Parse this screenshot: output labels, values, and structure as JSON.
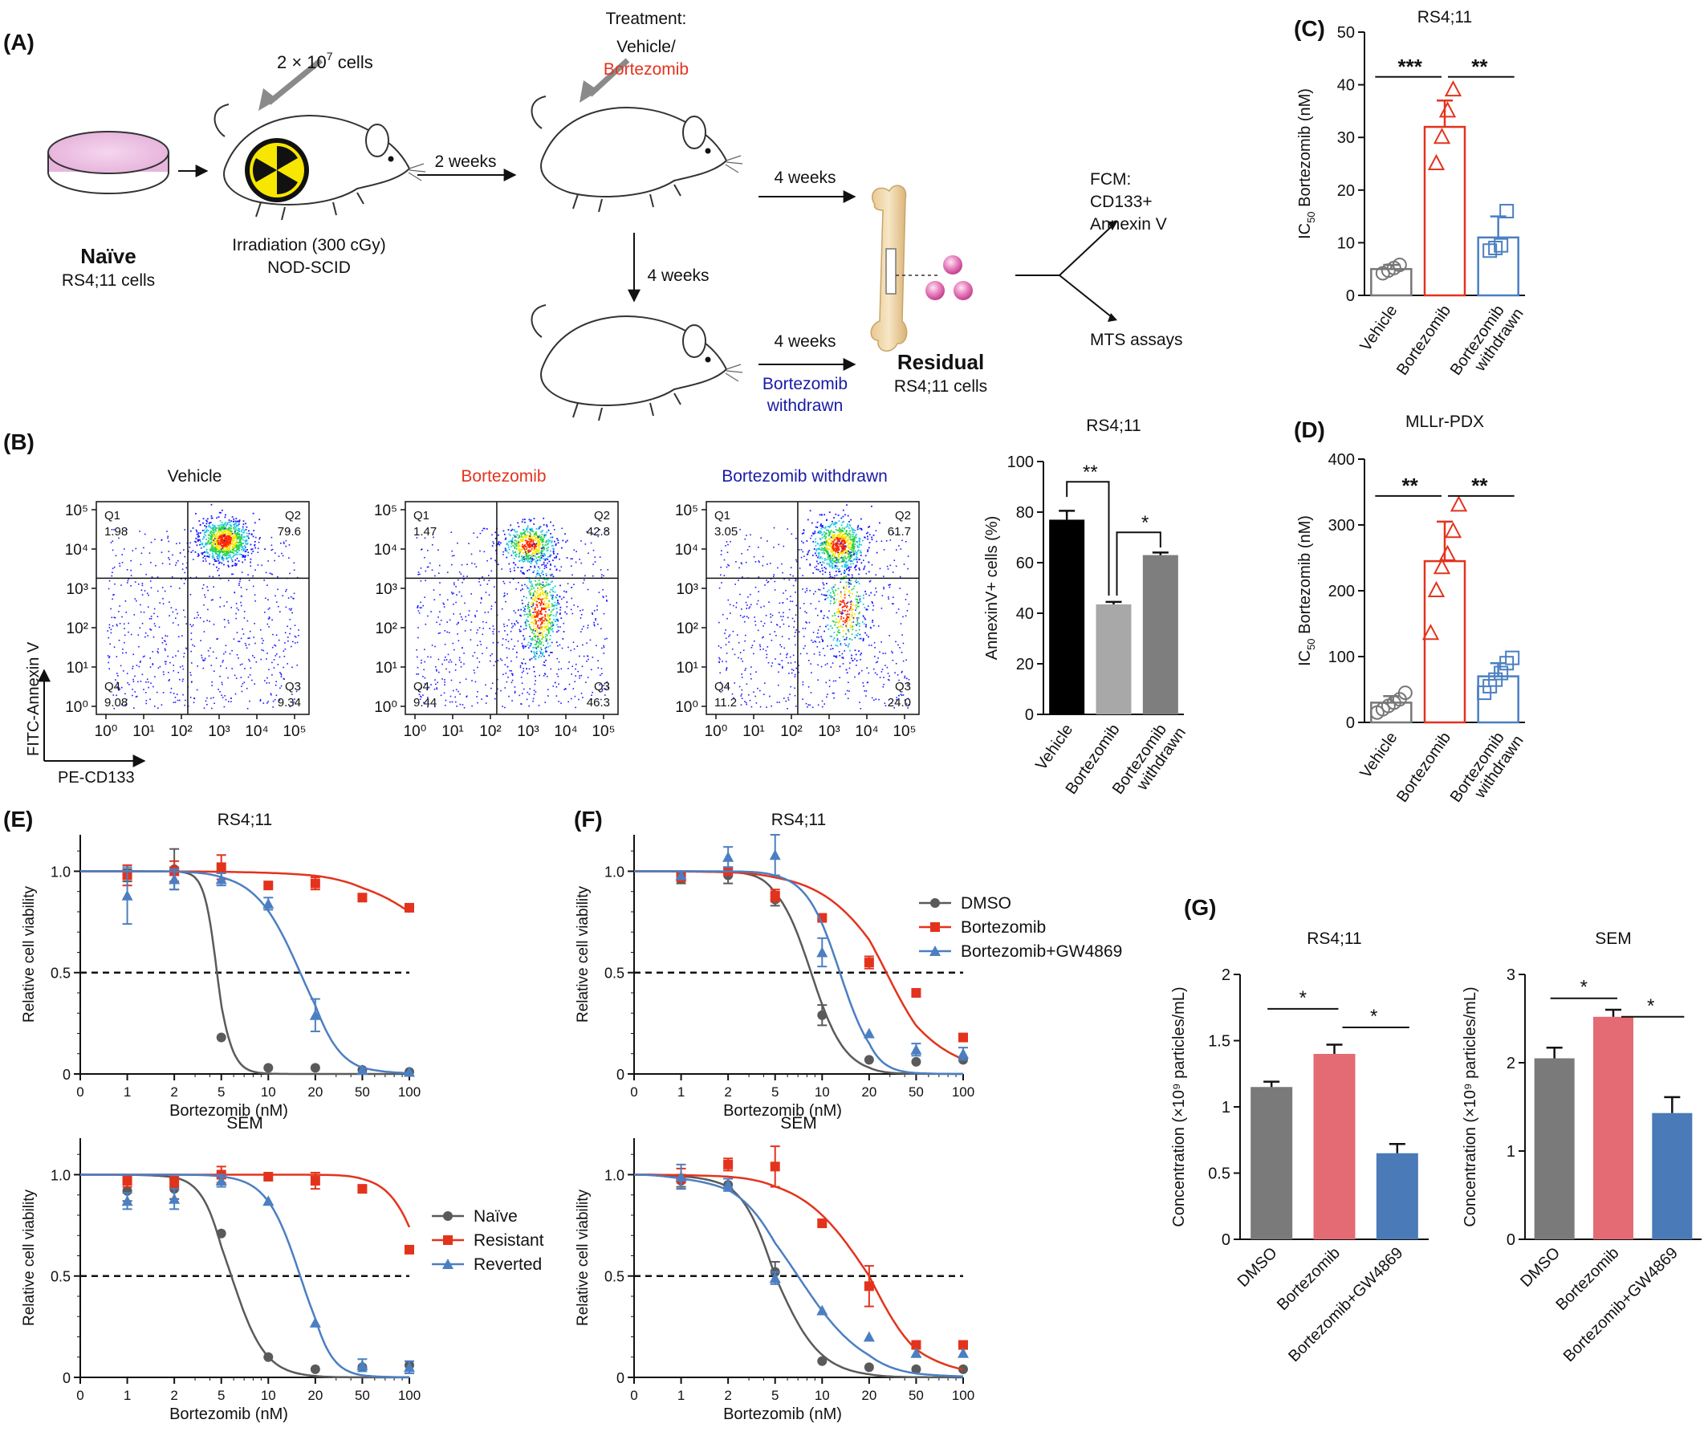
{
  "colors": {
    "black": "#111111",
    "gray": "#666666",
    "red": "#e3331d",
    "blue": "#4b7fc1",
    "navy": "#1a1aa8",
    "bar_black": "#000000",
    "bar_lightgray": "#a8a8a8",
    "bar_gray": "#7e7e7e",
    "g_gray": "#7a7a7a",
    "g_pink": "#e46a74",
    "g_blue": "#4a7ab7"
  },
  "panelA": {
    "label": "(A)",
    "cells_label": "2 × 10",
    "cells_exp": "7",
    "cells_suffix": " cells",
    "naive_bold": "Naïve",
    "naive_sub": "RS4;11 cells",
    "irradiation": "Irradiation (300 cGy)",
    "nod": "NOD-SCID",
    "two_weeks": "2 weeks",
    "treatment_title": "Treatment:",
    "treatment_vehicle": "Vehicle/",
    "treatment_bort": "Bortezomib",
    "four_weeks_top": "4 weeks",
    "four_weeks_down": "4 weeks",
    "four_weeks_bottom": "4 weeks",
    "withdrawn_1": "Bortezomib",
    "withdrawn_2": "withdrawn",
    "residual_bold": "Residual",
    "residual_sub": "RS4;11 cells",
    "fcm_1": "FCM:",
    "fcm_2": "CD133+",
    "fcm_3": "Annexin V",
    "mts": "MTS assays"
  },
  "panelB": {
    "label": "(B)",
    "plots": [
      {
        "title": "Vehicle",
        "q1": "1.98",
        "q2": "79.6",
        "q3": "9.34",
        "q4": "9.08"
      },
      {
        "title": "Bortezomib",
        "q1": "1.47",
        "q2": "42.8",
        "q3": "46.3",
        "q4": "9.44"
      },
      {
        "title": "Bortezomib withdrawn",
        "q1": "3.05",
        "q2": "61.7",
        "q3": "24.0",
        "q4": "11.2"
      }
    ],
    "quadrants": [
      "Q1",
      "Q2",
      "Q3",
      "Q4"
    ],
    "y_axis": "FITC-Annexin V",
    "x_axis": "PE-CD133"
  },
  "chart_data": [
    {
      "panel": "B-bar",
      "type": "bar",
      "title": "RS4;11",
      "ylabel": "AnnexinV+ cells (%)",
      "ylim": [
        0,
        100
      ],
      "yticks": [
        0,
        20,
        40,
        60,
        80,
        100
      ],
      "categories": [
        "Vehicle",
        "Bortezomib",
        "Bortezomib withdrawn"
      ],
      "values": [
        77,
        43.5,
        63
      ],
      "errors": [
        3.5,
        1,
        1
      ],
      "sig": [
        "**",
        "*"
      ]
    },
    {
      "panel": "C",
      "type": "bar",
      "label": "(C)",
      "title": "RS4;11",
      "ylabel_main": "IC",
      "ylabel_sub": "50",
      "ylabel_rest": " Bortezomib (nM)",
      "ylim": [
        0,
        50
      ],
      "yticks": [
        0,
        10,
        20,
        30,
        40,
        50
      ],
      "categories": [
        "Vehicle",
        "Bortezomib",
        "Bortezomib withdrawn"
      ],
      "values": [
        5,
        32,
        11
      ],
      "errors": [
        0.8,
        5,
        4
      ],
      "points": [
        [
          4.2,
          4.7,
          5.2,
          5.8
        ],
        [
          25,
          30,
          35,
          39
        ],
        [
          8.5,
          9,
          9.5,
          16
        ]
      ],
      "sig": [
        "***",
        "**"
      ]
    },
    {
      "panel": "D",
      "type": "bar",
      "label": "(D)",
      "title": "MLLr-PDX",
      "ylabel_main": "IC",
      "ylabel_sub": "50",
      "ylabel_rest": " Bortezomib (nM)",
      "ylim": [
        0,
        400
      ],
      "yticks": [
        0,
        100,
        200,
        300,
        400
      ],
      "categories": [
        "Vehicle",
        "Bortezomib",
        "Bortezomib withdrawn"
      ],
      "values": [
        30,
        245,
        70
      ],
      "errors": [
        10,
        60,
        20
      ],
      "points": [
        [
          15,
          20,
          25,
          30,
          35,
          45
        ],
        [
          135,
          200,
          235,
          255,
          290,
          330
        ],
        [
          45,
          55,
          65,
          75,
          90,
          98
        ]
      ],
      "sig": [
        "**",
        "**"
      ]
    },
    {
      "panel": "E-top",
      "type": "line",
      "label": "(E)",
      "title": "RS4;11",
      "xlabel": "Bortezomib (nM)",
      "ylabel": "Relative cell viability",
      "xticks": [
        "0",
        "1",
        "2",
        "5",
        "10",
        "20",
        "50",
        "100"
      ],
      "yticks": [
        "0",
        "0.5",
        "1.0"
      ],
      "series": [
        {
          "name": "Naïve",
          "ic50": 4.6,
          "hill": 8,
          "x": [
            1,
            2,
            5,
            10,
            20,
            50,
            100
          ],
          "y": [
            0.98,
            1.01,
            0.18,
            0.03,
            0.03,
            0.02,
            0.01
          ],
          "err": [
            0.03,
            0.1,
            0,
            0,
            0,
            0,
            0
          ]
        },
        {
          "name": "Resistant",
          "ic50": 250,
          "hill": 1.5,
          "x": [
            1,
            2,
            5,
            10,
            20,
            50,
            100
          ],
          "y": [
            0.98,
            1.0,
            1.02,
            0.93,
            0.94,
            0.87,
            0.82
          ],
          "err": [
            0.05,
            0.05,
            0.06,
            0,
            0.03,
            0,
            0
          ]
        },
        {
          "name": "Reverted",
          "ic50": 16,
          "hill": 3,
          "x": [
            1,
            2,
            5,
            10,
            20,
            50,
            100
          ],
          "y": [
            0.88,
            0.96,
            0.96,
            0.84,
            0.29,
            0.02,
            0.01
          ],
          "err": [
            0.14,
            0.05,
            0.03,
            0.03,
            0.08,
            0,
            0
          ]
        }
      ]
    },
    {
      "panel": "E-bottom",
      "type": "line",
      "title": "SEM",
      "xlabel": "Bortezomib (nM)",
      "ylabel": "Relative cell viability",
      "xticks": [
        "0",
        "1",
        "2",
        "5",
        "10",
        "20",
        "50",
        "100"
      ],
      "yticks": [
        "0",
        "0.5",
        "1.0"
      ],
      "series": [
        {
          "name": "Naïve",
          "ic50": 5.8,
          "hill": 4,
          "x": [
            1,
            2,
            5,
            10,
            20,
            50,
            100
          ],
          "y": [
            0.92,
            0.93,
            0.71,
            0.1,
            0.04,
            0.05,
            0.06
          ],
          "err": [
            0.05,
            0.05,
            0,
            0,
            0,
            0,
            0
          ]
        },
        {
          "name": "Resistant",
          "ic50": 130,
          "hill": 4,
          "x": [
            1,
            2,
            5,
            10,
            20,
            50,
            100
          ],
          "y": [
            0.97,
            0.96,
            1.0,
            0.99,
            0.97,
            0.93,
            0.63
          ],
          "err": [
            0.03,
            0.03,
            0.04,
            0,
            0.04,
            0,
            0
          ]
        },
        {
          "name": "Reverted",
          "ic50": 16,
          "hill": 4,
          "x": [
            1,
            2,
            5,
            10,
            20,
            50,
            100
          ],
          "y": [
            0.87,
            0.88,
            0.97,
            0.87,
            0.27,
            0.06,
            0.05
          ],
          "err": [
            0.04,
            0.05,
            0.03,
            0,
            0,
            0.03,
            0.03
          ]
        }
      ]
    },
    {
      "panel": "F-top",
      "type": "line",
      "label": "(F)",
      "title": "RS4;11",
      "xlabel": "Bortezomib (nM)",
      "ylabel": "Relative cell viability",
      "xticks": [
        "0",
        "1",
        "2",
        "5",
        "10",
        "20",
        "50",
        "100"
      ],
      "yticks": [
        "0",
        "0.5",
        "1.0"
      ],
      "series": [
        {
          "name": "DMSO",
          "ic50": 8.5,
          "hill": 4,
          "x": [
            1,
            2,
            5,
            10,
            20,
            50,
            100
          ],
          "y": [
            0.96,
            0.98,
            0.86,
            0.29,
            0.07,
            0.06,
            0.07
          ],
          "err": [
            0.02,
            0.04,
            0.03,
            0.05,
            0,
            0,
            0
          ]
        },
        {
          "name": "Bortezomib",
          "ic50": 28,
          "hill": 2,
          "x": [
            1,
            2,
            5,
            10,
            20,
            50,
            100
          ],
          "y": [
            0.97,
            1.0,
            0.88,
            0.77,
            0.55,
            0.4,
            0.18
          ],
          "err": [
            0.02,
            0.02,
            0.03,
            0,
            0.03,
            0,
            0
          ]
        },
        {
          "name": "Bortezomib+GW4869",
          "ic50": 13,
          "hill": 4,
          "x": [
            1,
            2,
            5,
            10,
            20,
            50,
            100
          ],
          "y": [
            0.98,
            1.07,
            1.08,
            0.6,
            0.2,
            0.12,
            0.1
          ],
          "err": [
            0.02,
            0.05,
            0.1,
            0.07,
            0,
            0.03,
            0.03
          ]
        }
      ]
    },
    {
      "panel": "F-bottom",
      "type": "line",
      "title": "SEM",
      "xlabel": "Bortezomib (nM)",
      "ylabel": "Relative cell viability",
      "xticks": [
        "0",
        "1",
        "2",
        "5",
        "10",
        "20",
        "50",
        "100"
      ],
      "yticks": [
        "0",
        "0.5",
        "1.0"
      ],
      "series": [
        {
          "name": "DMSO",
          "ic50": 5,
          "hill": 3,
          "x": [
            1,
            2,
            5,
            10,
            20,
            50,
            100
          ],
          "y": [
            0.97,
            0.95,
            0.52,
            0.08,
            0.05,
            0.04,
            0.04
          ],
          "err": [
            0.03,
            0.03,
            0.05,
            0,
            0,
            0,
            0
          ]
        },
        {
          "name": "Bortezomib",
          "ic50": 20,
          "hill": 2,
          "x": [
            1,
            2,
            5,
            10,
            20,
            50,
            100
          ],
          "y": [
            0.98,
            1.05,
            1.04,
            0.76,
            0.45,
            0.16,
            0.16
          ],
          "err": [
            0.05,
            0.03,
            0.1,
            0,
            0.1,
            0,
            0
          ]
        },
        {
          "name": "Bortezomib+GW4869",
          "ic50": 7,
          "hill": 2,
          "x": [
            1,
            2,
            5,
            10,
            20,
            50,
            100
          ],
          "y": [
            0.99,
            0.95,
            0.49,
            0.33,
            0.2,
            0.12,
            0.12
          ],
          "err": [
            0.06,
            0.03,
            0.03,
            0,
            0,
            0,
            0
          ]
        }
      ]
    },
    {
      "panel": "G-left",
      "type": "bar",
      "label": "(G)",
      "title": "RS4;11",
      "ylabel": "Concentration (×10⁹ particles/mL)",
      "ylim": [
        0,
        2
      ],
      "yticks": [
        "0",
        "0.5",
        "1",
        "1.5",
        "2"
      ],
      "ytickvals": [
        0,
        0.5,
        1,
        1.5,
        2
      ],
      "categories": [
        "DMSO",
        "Bortezomib",
        "Bortezomib+GW4869"
      ],
      "values": [
        1.15,
        1.4,
        0.65
      ],
      "errors": [
        0.04,
        0.07,
        0.07
      ],
      "sig": [
        "*",
        "*"
      ]
    },
    {
      "panel": "G-right",
      "type": "bar",
      "title": "SEM",
      "ylabel": "Concentration (×10⁹ particles/mL)",
      "ylim": [
        0,
        3
      ],
      "yticks": [
        "0",
        "1",
        "2",
        "3"
      ],
      "ytickvals": [
        0,
        1,
        2,
        3
      ],
      "categories": [
        "DMSO",
        "Bortezomib",
        "Bortezomib+GW4869"
      ],
      "values": [
        2.05,
        2.52,
        1.43
      ],
      "errors": [
        0.12,
        0.08,
        0.18
      ],
      "sig": [
        "*",
        "*"
      ]
    }
  ],
  "legendE": [
    "Naïve",
    "Resistant",
    "Reverted"
  ],
  "legendF": [
    "DMSO",
    "Bortezomib",
    "Bortezomib+GW4869"
  ]
}
